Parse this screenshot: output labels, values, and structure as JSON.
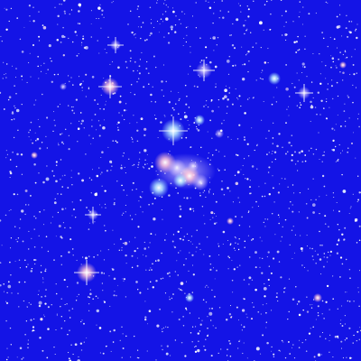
{
  "scene": {
    "subject": "star-field",
    "background_color": "#1414e6",
    "star_color": "#ffffff",
    "glow_colors": {
      "cyan": "#a8e8ff",
      "pink": "#ffb8d0",
      "lavender": "#d8c8ff"
    }
  }
}
